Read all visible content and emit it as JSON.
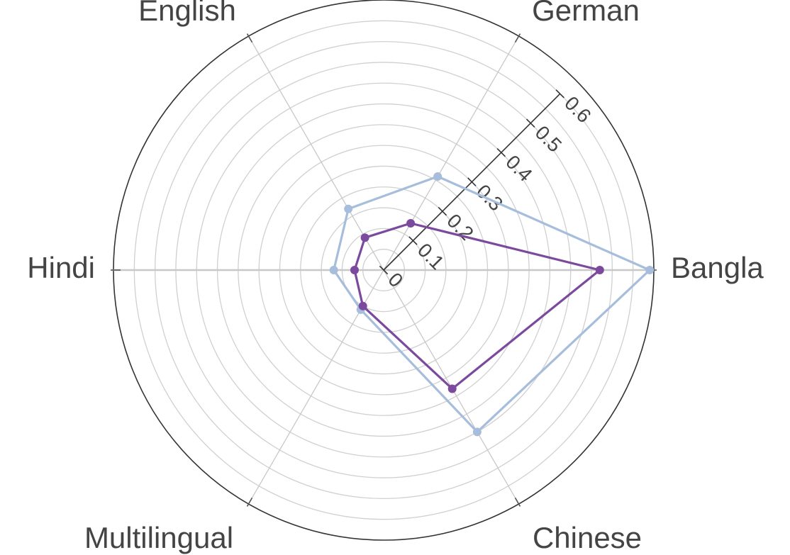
{
  "chart_data": {
    "type": "radar",
    "axes": [
      "Bangla",
      "German",
      "English",
      "Hindi",
      "Multilingual",
      "Chinese"
    ],
    "radial_ticks": [
      0,
      0.1,
      0.2,
      0.3,
      0.4,
      0.5,
      0.6
    ],
    "tick_labels": [
      "0",
      "0.1",
      "0.2",
      "0.3",
      "0.4",
      "0.5",
      "0.6"
    ],
    "rlim": [
      0,
      0.65
    ],
    "grid": true,
    "series": [
      {
        "values": [
          0.64,
          0.26,
          0.17,
          0.12,
          0.11,
          0.45
        ],
        "color": "#a6bddc"
      },
      {
        "values": [
          0.52,
          0.13,
          0.09,
          0.07,
          0.1,
          0.33
        ],
        "color": "#7b4a9e"
      }
    ]
  }
}
